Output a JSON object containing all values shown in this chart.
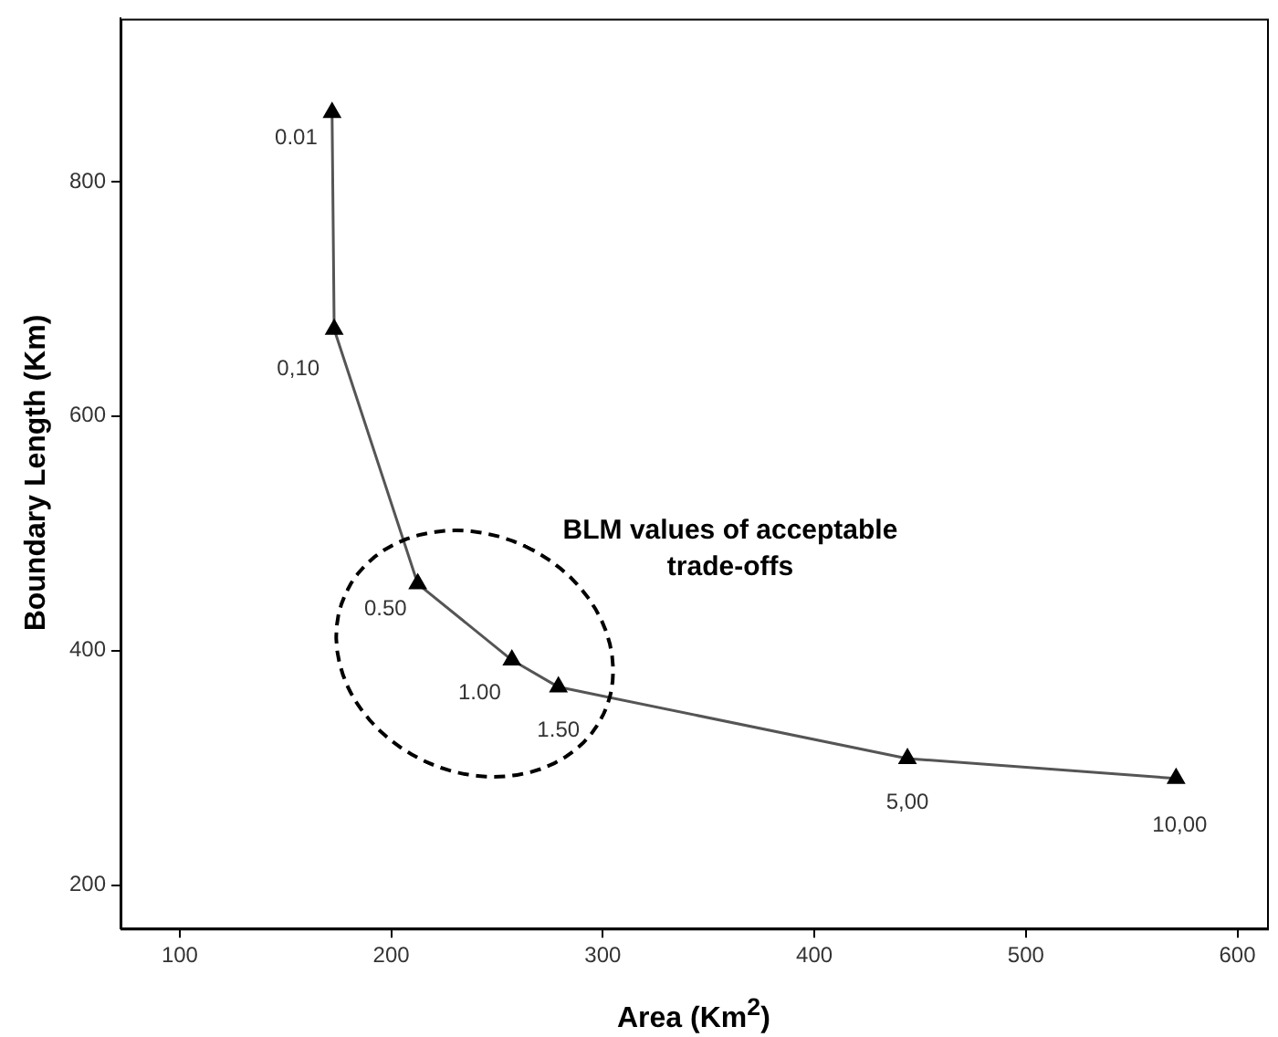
{
  "chart_data": {
    "type": "line",
    "xlabel": "Area (Km$^{2}$)",
    "ylabel": "Boundary Length (Km)",
    "x": [
      172,
      173,
      212.5,
      257,
      279,
      444,
      571
    ],
    "series": [
      {
        "color": "#555555",
        "values": [
          859,
          674,
          457,
          392,
          369,
          308,
          291
        ]
      }
    ],
    "marker": "triangle",
    "line_style": "solid",
    "grid": false,
    "legend": false,
    "xlim": [
      72,
      614
    ],
    "xticks": [
      100,
      200,
      300,
      400,
      500,
      600
    ],
    "ylim": [
      163,
      939
    ],
    "yticks": [
      200,
      400,
      600,
      800
    ],
    "annotations": [
      {
        "text": "0.01",
        "x": 172,
        "y": 859
      },
      {
        "text": "0,10",
        "x": 173,
        "y": 674
      },
      {
        "text": "0.50",
        "x": 212.5,
        "y": 457
      },
      {
        "text": "1.00",
        "x": 257,
        "y": 392
      },
      {
        "text": "1.50",
        "x": 279,
        "y": 369
      },
      {
        "text": "5,00",
        "x": 444,
        "y": 308
      },
      {
        "text": "10,00",
        "x": 571,
        "y": 291
      },
      "BLM values of acceptable trade-offs"
    ]
  }
}
